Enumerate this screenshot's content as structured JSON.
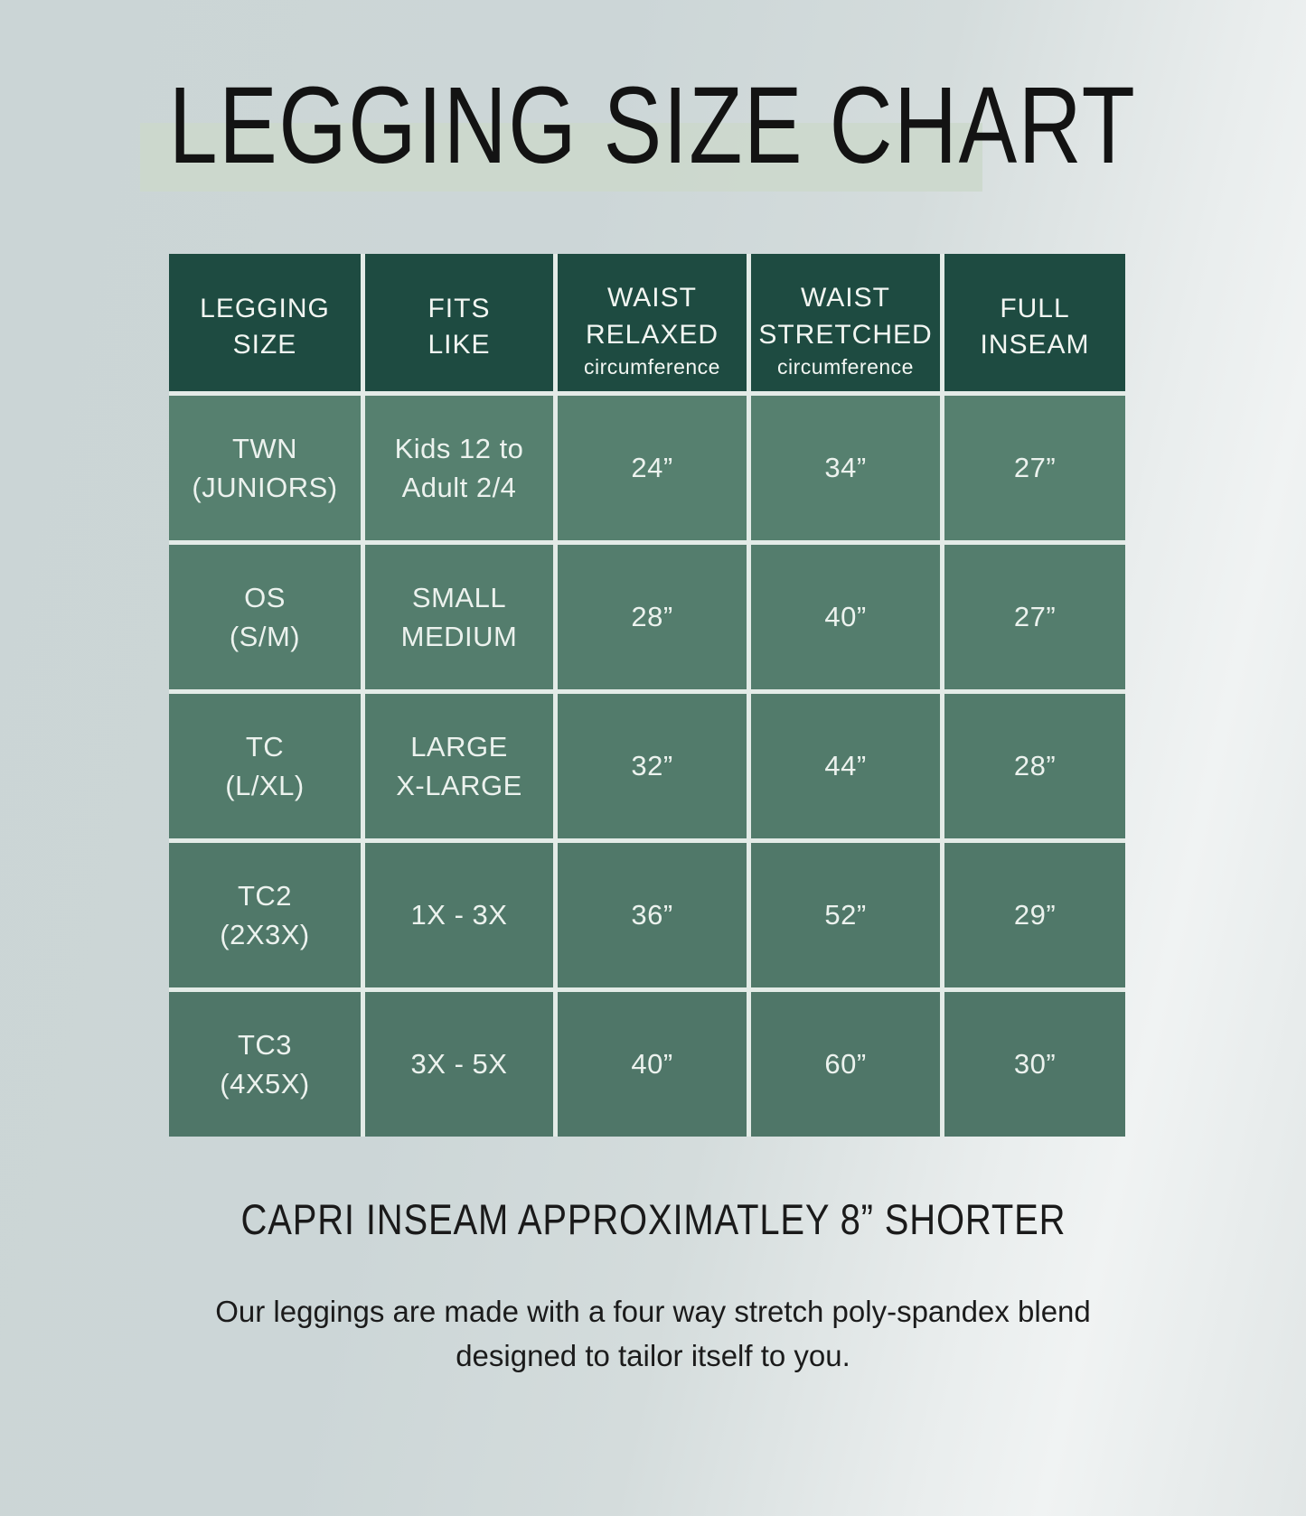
{
  "title": "LEGGING SIZE CHART",
  "table": {
    "columns": [
      {
        "label": "LEGGING\nSIZE",
        "sub": ""
      },
      {
        "label": "FITS\nLIKE",
        "sub": ""
      },
      {
        "label": "WAIST\nRELAXED",
        "sub": "circumference"
      },
      {
        "label": "WAIST\nSTRETCHED",
        "sub": "circumference"
      },
      {
        "label": "FULL\nINSEAM",
        "sub": ""
      }
    ],
    "rows": [
      {
        "cells": [
          "TWN\n(JUNIORS)",
          "Kids 12 to\nAdult 2/4",
          "24”",
          "34”",
          "27”"
        ]
      },
      {
        "cells": [
          "OS\n(S/M)",
          "SMALL\nMEDIUM",
          "28”",
          "40”",
          "27”"
        ]
      },
      {
        "cells": [
          "TC\n(L/XL)",
          "LARGE\nX-LARGE",
          "32”",
          "44”",
          "28”"
        ]
      },
      {
        "cells": [
          "TC2\n(2X3X)",
          "1X - 3X",
          "36”",
          "52”",
          "29”"
        ]
      },
      {
        "cells": [
          "TC3\n(4X5X)",
          "3X - 5X",
          "40”",
          "60”",
          "30”"
        ]
      }
    ]
  },
  "notes": {
    "capri": "CAPRI INSEAM APPROXIMATLEY 8” SHORTER",
    "material": "Our leggings are made with a four way stretch poly-spandex blend\ndesigned to tailor itself to you."
  },
  "colors": {
    "header_green": "#1e4b41",
    "cell_green": "#537c6e",
    "divider": "#e3ebe7",
    "title_highlight": "#ccd8cc",
    "background": "#ccd6d7",
    "text_on_green": "#ecf2ee",
    "text_dark": "#131313"
  }
}
